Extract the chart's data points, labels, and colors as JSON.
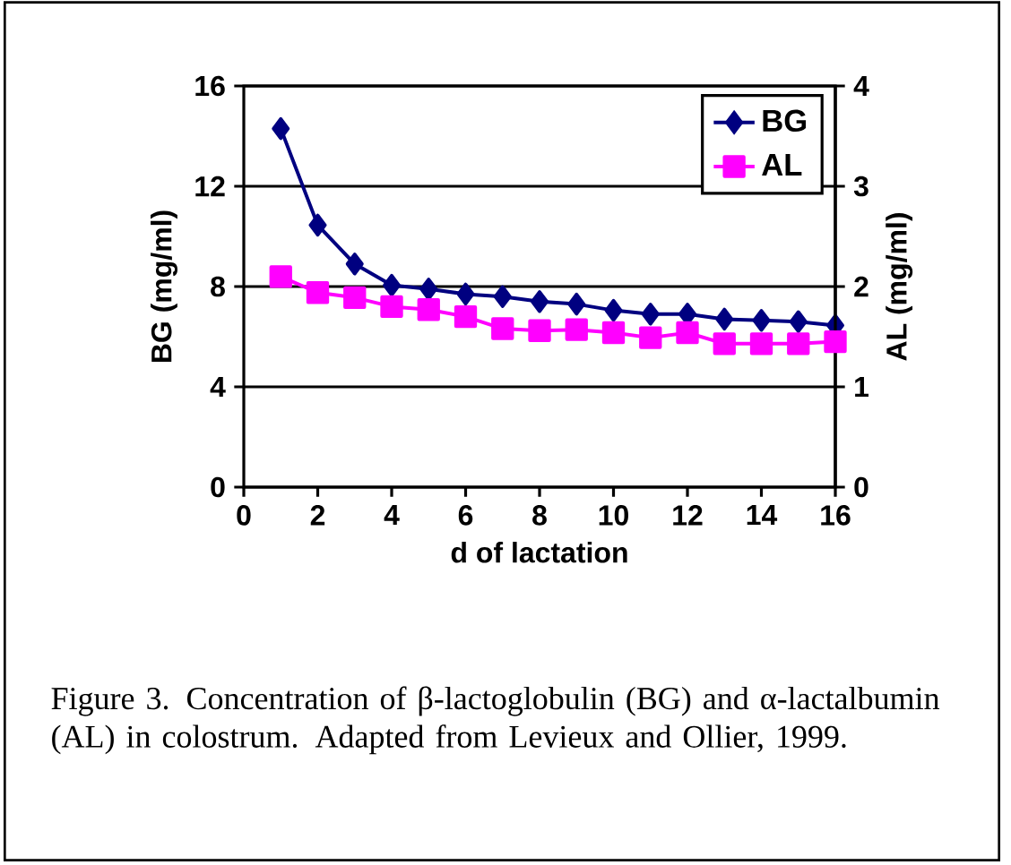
{
  "chart_data": {
    "type": "line",
    "xlabel": "d of lactation",
    "ylabel": "BG (mg/ml)",
    "y2label": "AL (mg/ml)",
    "x": [
      1,
      2,
      3,
      4,
      5,
      6,
      7,
      8,
      9,
      10,
      11,
      12,
      13,
      14,
      15,
      16
    ],
    "series": [
      {
        "name": "BG",
        "color": "#000080",
        "marker": "diamond",
        "values": [
          14.3,
          10.45,
          8.9,
          8.05,
          7.9,
          7.7,
          7.6,
          7.4,
          7.3,
          7.05,
          6.9,
          6.9,
          6.7,
          6.65,
          6.6,
          6.45
        ]
      },
      {
        "name": "AL",
        "color": "#ff00ff",
        "marker": "square",
        "axis": "y2",
        "values": [
          2.1,
          1.94,
          1.89,
          1.8,
          1.77,
          1.7,
          1.58,
          1.56,
          1.57,
          1.54,
          1.49,
          1.54,
          1.43,
          1.43,
          1.43,
          1.45
        ]
      }
    ],
    "xlim": [
      0,
      16
    ],
    "xticks": [
      0,
      2,
      4,
      6,
      8,
      10,
      12,
      14,
      16
    ],
    "ylim": [
      0,
      16
    ],
    "yticks": [
      0,
      4,
      8,
      12,
      16
    ],
    "y2lim": [
      0,
      4
    ],
    "y2ticks": [
      0,
      1,
      2,
      3,
      4
    ],
    "grid": "y",
    "legend": "top right",
    "line_style": "solid",
    "annotations": [
      "Figure 3.  Concentration of β-lactoglobulin (BG) and α-lactalbumin (AL) in colostrum.  Adapted from Levieux and Ollier, 1999."
    ]
  }
}
